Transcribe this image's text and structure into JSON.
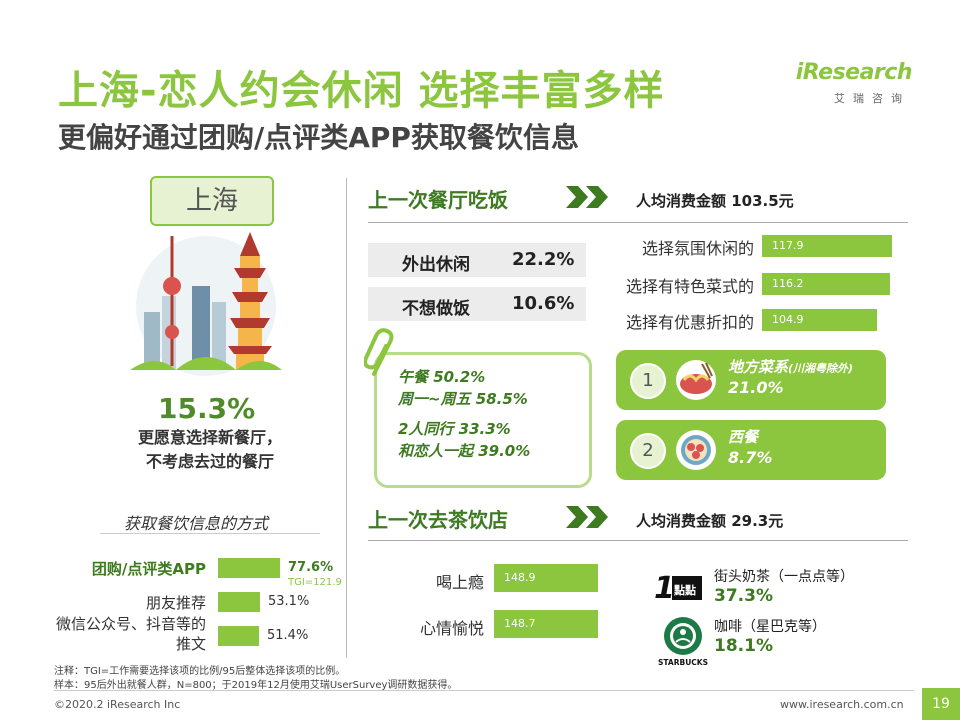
{
  "header": {
    "title": "上海-恋人约会休闲 选择丰富多样",
    "subtitle": "更偏好通过团购/点评类APP获取餐饮信息"
  },
  "logo": {
    "brand": "iResearch",
    "sub": "艾瑞咨询"
  },
  "left": {
    "city": "上海",
    "highlight_pct": "15.3%",
    "highlight_desc_1": "更愿意选择新餐厅，",
    "highlight_desc_2": "不考虑去过的餐厅",
    "info_title": "获取餐饮信息的方式",
    "methods": [
      {
        "label": "团购/点评类APP",
        "value": "77.6%",
        "tgi": "TGI=121.9",
        "fraction": 0.776
      },
      {
        "label": "朋友推荐",
        "value": "53.1%",
        "fraction": 0.531
      },
      {
        "label": "微信公众号、抖音等的推文",
        "value": "51.4%",
        "fraction": 0.514
      }
    ]
  },
  "restaurant": {
    "title": "上一次餐厅吃饭",
    "avg_spend": "人均消费金额 103.5元",
    "reasons": [
      {
        "label": "外出休闲",
        "value": "22.2%"
      },
      {
        "label": "不想做饭",
        "value": "10.6%"
      }
    ],
    "tgi_bars": [
      {
        "label": "选择氛围休闲的",
        "value": "117.9",
        "num": 117.9
      },
      {
        "label": "选择有特色菜式的",
        "value": "116.2",
        "num": 116.2
      },
      {
        "label": "选择有优惠折扣的",
        "value": "104.9",
        "num": 104.9
      }
    ],
    "clip_lines": [
      "午餐 50.2%",
      "周一~周五 58.5%",
      "2人同行 33.3%",
      "和恋人一起 39.0%"
    ],
    "dishes": [
      {
        "rank": "1",
        "name": "地方菜系",
        "note": "(川湘粤除外)",
        "pct": "21.0%"
      },
      {
        "rank": "2",
        "name": "西餐",
        "note": "",
        "pct": "8.7%"
      }
    ]
  },
  "tea": {
    "title": "上一次去茶饮店",
    "avg_spend": "人均消费金额 29.3元",
    "tgi_bars": [
      {
        "label": "喝上瘾",
        "value": "148.9",
        "num": 148.9
      },
      {
        "label": "心情愉悦",
        "value": "148.7",
        "num": 148.7
      }
    ],
    "brands": [
      {
        "name": "街头奶茶（一点点等）",
        "pct": "37.3%",
        "icon_text": "1點點"
      },
      {
        "name": "咖啡（星巴克等）",
        "pct": "18.1%",
        "icon_text": "STARBUCKS"
      }
    ]
  },
  "notes": {
    "note1": "注释：TGI=工作需要选择该项的比例/95后整体选择该项的比例。",
    "note2": "样本：95后外出就餐人群，N=800；于2019年12月使用艾瑞UserSurvey调研数据获得。"
  },
  "footer": {
    "copyright": "©2020.2 iResearch Inc",
    "site": "www.iresearch.com.cn",
    "page": "19"
  },
  "colors": {
    "accent": "#8cc63f",
    "dark_green": "#3d7a20"
  }
}
